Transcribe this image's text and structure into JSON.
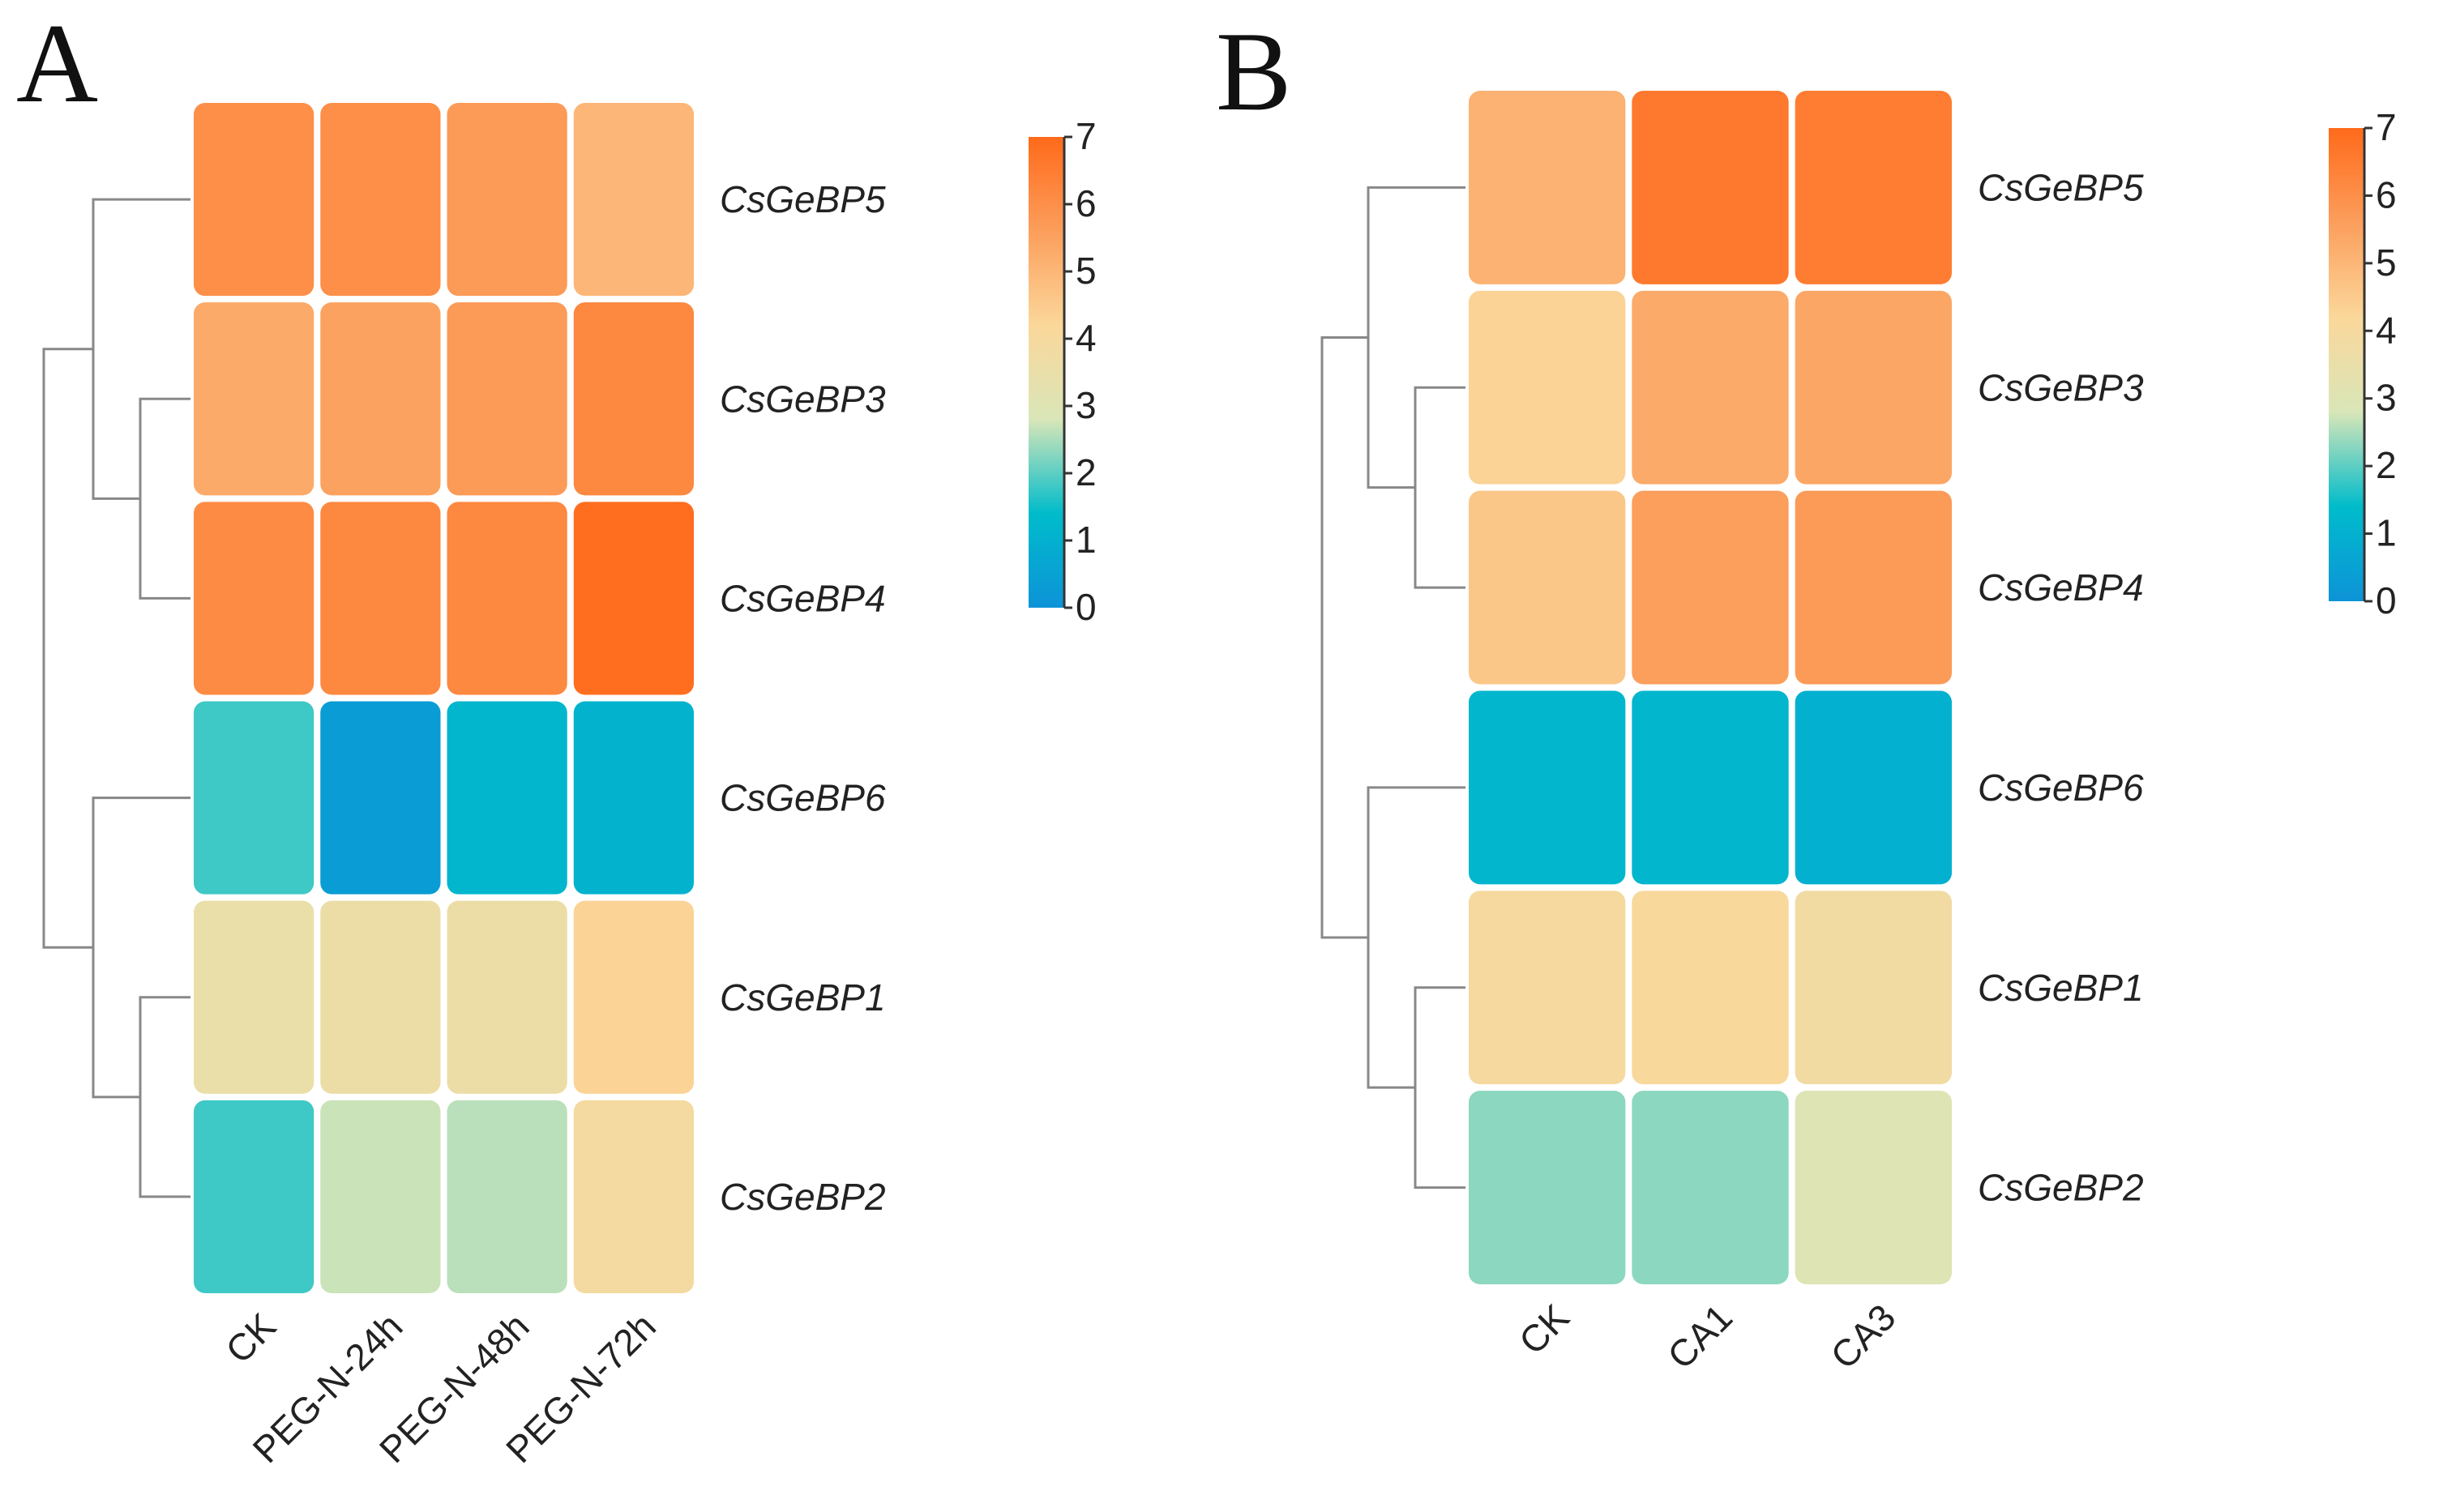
{
  "chart_data": [
    {
      "type": "heatmap",
      "panel_label": "A",
      "rows": [
        "CsGeBP5",
        "CsGeBP3",
        "CsGeBP4",
        "CsGeBP6",
        "CsGeBP1",
        "CsGeBP2"
      ],
      "columns": [
        "CK",
        "PEG-N-24h",
        "PEG-N-48h",
        "PEG-N-72h"
      ],
      "values": [
        [
          6.0,
          6.0,
          5.7,
          5.0
        ],
        [
          5.3,
          5.5,
          5.7,
          6.2
        ],
        [
          6.1,
          6.2,
          6.2,
          6.9
        ],
        [
          1.8,
          0.3,
          1.2,
          1.1
        ],
        [
          3.5,
          3.6,
          3.6,
          4.3
        ],
        [
          1.8,
          2.7,
          2.6,
          3.9
        ]
      ],
      "zlim": [
        0,
        7
      ],
      "zticks": [
        0,
        1,
        2,
        3,
        4,
        5,
        6,
        7
      ],
      "colors": [
        "#0d93d8",
        "#00bccb",
        "#d9e6b8",
        "#fbd79a",
        "#fc9e5c",
        "#ff6a1a"
      ]
    },
    {
      "type": "heatmap",
      "panel_label": "B",
      "rows": [
        "CsGeBP5",
        "CsGeBP3",
        "CsGeBP4",
        "CsGeBP6",
        "CsGeBP1",
        "CsGeBP2"
      ],
      "columns": [
        "CK",
        "CA1",
        "CA3"
      ],
      "values": [
        [
          5.1,
          6.6,
          6.5
        ],
        [
          4.3,
          5.3,
          5.4
        ],
        [
          4.6,
          5.6,
          5.7
        ],
        [
          1.2,
          1.2,
          1.0
        ],
        [
          4.0,
          4.1,
          3.8
        ],
        [
          2.3,
          2.3,
          3.0
        ]
      ],
      "zlim": [
        0,
        7
      ],
      "zticks": [
        0,
        1,
        2,
        3,
        4,
        5,
        6,
        7
      ],
      "colors": [
        "#0d93d8",
        "#00bccb",
        "#d9e6b8",
        "#fbd79a",
        "#fc9e5c",
        "#ff6a1a"
      ]
    }
  ]
}
